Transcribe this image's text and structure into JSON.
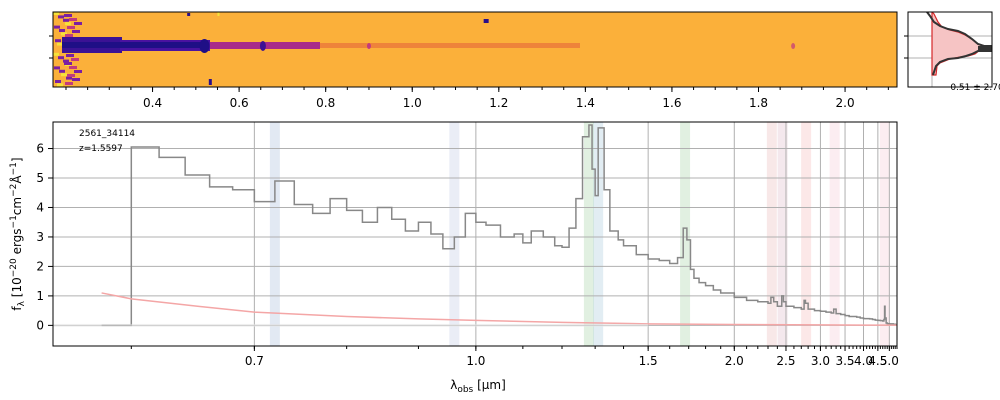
{
  "chart_data": [
    {
      "type": "heatmap",
      "panel": "2d-spectrum",
      "title": "",
      "xticks": [
        "0.4",
        "0.6",
        "0.8",
        "1.0",
        "1.2",
        "1.4",
        "1.6",
        "1.8",
        "2.0"
      ],
      "xtick_values": [
        0.4,
        0.6,
        0.8,
        1.0,
        1.2,
        1.4,
        1.6,
        1.8,
        2.0
      ],
      "xlim": [
        0.17,
        2.12
      ],
      "colormap": "plasma",
      "colors": {
        "background": "#fbb03a",
        "dark": "#1f0f86",
        "mid": "#7b1fa2",
        "bright": "#f5e33a"
      }
    },
    {
      "type": "line",
      "panel": "spatial-profile",
      "label": "0.51 ± 2.70",
      "colors": {
        "profile": "#333333",
        "model": "#d62728",
        "fill": "#f6c4c4"
      }
    },
    {
      "type": "line",
      "panel": "1d-spectrum",
      "annotation": {
        "id": "2561_34114",
        "redshift": "z=1.5597"
      },
      "xlabel": "λobs [μm]",
      "ylabel": "fλ [10−20 ergs−1cm−2Å−1]",
      "xticks": [
        "0.7",
        "1.0",
        "1.5",
        "2.0",
        "2.5",
        "3.0",
        "3.5",
        "4.0",
        "4.5",
        "5.0"
      ],
      "xtick_values": [
        0.7,
        1.0,
        1.5,
        2.0,
        2.5,
        3.0,
        3.5,
        4.0,
        4.5,
        5.0
      ],
      "yticks": [
        "0",
        "1",
        "2",
        "3",
        "4",
        "5",
        "6"
      ],
      "ytick_values": [
        0,
        1,
        2,
        3,
        4,
        5,
        6
      ],
      "xlim": [
        0.55,
        5.4
      ],
      "ylim": [
        -0.7,
        6.9
      ],
      "grid": true,
      "x_scale": "reciprocal",
      "series": [
        {
          "role": "flux",
          "color": "#888888",
          "x": [
            0.58,
            0.6,
            0.62,
            0.64,
            0.66,
            0.68,
            0.7,
            0.72,
            0.74,
            0.76,
            0.78,
            0.8,
            0.82,
            0.84,
            0.86,
            0.88,
            0.9,
            0.92,
            0.94,
            0.96,
            0.98,
            1.0,
            1.02,
            1.05,
            1.08,
            1.1,
            1.12,
            1.15,
            1.18,
            1.2,
            1.22,
            1.24,
            1.26,
            1.28,
            1.29,
            1.3,
            1.31,
            1.33,
            1.35,
            1.38,
            1.4,
            1.45,
            1.5,
            1.55,
            1.6,
            1.64,
            1.67,
            1.69,
            1.71,
            1.73,
            1.76,
            1.8,
            1.85,
            1.9,
            2.0,
            2.1,
            2.2,
            2.3,
            2.33,
            2.36,
            2.4,
            2.45,
            2.47,
            2.5,
            2.6,
            2.7,
            2.74,
            2.76,
            2.8,
            2.9,
            3.0,
            3.1,
            3.2,
            3.25,
            3.3,
            3.4,
            3.5,
            3.6,
            3.7,
            3.8,
            3.9,
            4.0,
            4.1,
            4.2,
            4.3,
            4.4,
            4.5,
            4.6,
            4.7,
            4.75,
            4.78,
            4.8,
            4.85,
            4.9,
            5.0,
            5.1,
            5.2,
            5.3,
            5.4
          ],
          "y": [
            0.0,
            6.05,
            5.7,
            5.1,
            4.7,
            4.6,
            4.2,
            4.9,
            4.1,
            3.8,
            4.3,
            3.9,
            3.5,
            4.0,
            3.6,
            3.2,
            3.5,
            3.1,
            2.6,
            3.0,
            3.8,
            3.5,
            3.4,
            3.0,
            3.1,
            2.8,
            3.2,
            3.0,
            2.7,
            2.65,
            3.3,
            4.3,
            6.4,
            6.8,
            5.3,
            4.4,
            6.7,
            4.6,
            3.2,
            2.9,
            2.7,
            2.4,
            2.25,
            2.2,
            2.1,
            2.3,
            3.3,
            2.9,
            1.9,
            1.6,
            1.45,
            1.35,
            1.2,
            1.1,
            0.95,
            0.85,
            0.8,
            0.75,
            0.95,
            0.8,
            0.65,
            1.0,
            0.8,
            0.65,
            0.6,
            0.55,
            0.85,
            0.75,
            0.55,
            0.5,
            0.48,
            0.45,
            0.42,
            0.55,
            0.4,
            0.37,
            0.33,
            0.3,
            0.3,
            0.28,
            0.25,
            0.23,
            0.23,
            0.22,
            0.2,
            0.18,
            0.17,
            0.16,
            0.15,
            0.2,
            0.65,
            0.25,
            0.08,
            0.06,
            0.05,
            0.05,
            0.04,
            0.03,
            0.02
          ]
        },
        {
          "role": "error",
          "color": "#f4a6a6",
          "x": [
            0.58,
            0.6,
            0.65,
            0.7,
            0.8,
            0.9,
            1.0,
            1.2,
            1.5,
            2.0,
            3.0,
            4.0,
            5.0,
            5.4
          ],
          "y": [
            1.1,
            0.9,
            0.65,
            0.45,
            0.3,
            0.22,
            0.17,
            0.1,
            0.05,
            0.03,
            0.015,
            0.01,
            0.01,
            0.01
          ]
        }
      ],
      "line_bands": [
        {
          "x": 0.72,
          "color": "#9fb6d6"
        },
        {
          "x": 0.96,
          "color": "#b8c2e0"
        },
        {
          "x": 1.28,
          "color": "#9ccc9c"
        },
        {
          "x": 1.31,
          "color": "#9fc4d6"
        },
        {
          "x": 1.68,
          "color": "#9ccc9c"
        },
        {
          "x": 2.34,
          "color": "#e9b2b2"
        },
        {
          "x": 2.46,
          "color": "#d9b2c2"
        },
        {
          "x": 2.77,
          "color": "#f6b2b2"
        },
        {
          "x": 3.27,
          "color": "#f4c2d0"
        },
        {
          "x": 4.79,
          "color": "#f4c2d0"
        }
      ]
    }
  ]
}
